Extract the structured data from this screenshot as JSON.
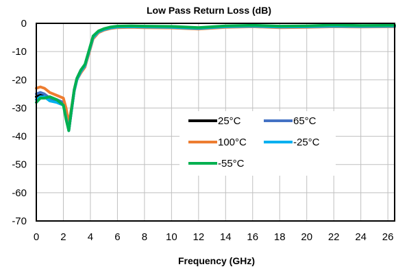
{
  "chart_data": {
    "type": "line",
    "title": "Low Pass Return Loss (dB)",
    "xlabel": "Frequency (GHz)",
    "ylabel": "",
    "xlim": [
      0,
      26.5
    ],
    "ylim": [
      -70,
      0
    ],
    "xticks": [
      0,
      2,
      4,
      6,
      8,
      10,
      12,
      14,
      16,
      18,
      20,
      22,
      24,
      26
    ],
    "yticks": [
      0,
      -10,
      -20,
      -30,
      -40,
      -50,
      -60,
      -70
    ],
    "grid": true,
    "legend_placement": "center",
    "series": [
      {
        "name": "25°C",
        "color": "#000000",
        "x": [
          0,
          0.3,
          0.6,
          1,
          1.5,
          2,
          2.2,
          2.4,
          2.6,
          2.8,
          3,
          3.3,
          3.6,
          3.9,
          4.2,
          4.6,
          5,
          5.5,
          6,
          7,
          8,
          10,
          12,
          14,
          16,
          18,
          20,
          22,
          24,
          26.5
        ],
        "y": [
          -26,
          -25,
          -25.5,
          -27,
          -27.5,
          -28.5,
          -33,
          -38,
          -31,
          -24,
          -20,
          -17,
          -15,
          -10,
          -5,
          -3,
          -2.2,
          -1.6,
          -1.3,
          -1.2,
          -1.3,
          -1.4,
          -1.8,
          -1.2,
          -1.0,
          -1.3,
          -1.2,
          -1.0,
          -1.1,
          -1.0
        ]
      },
      {
        "name": "65°C",
        "color": "#4472c4",
        "x": [
          0,
          0.3,
          0.6,
          1,
          1.5,
          2,
          2.2,
          2.4,
          2.6,
          2.8,
          3,
          3.3,
          3.6,
          3.9,
          4.2,
          4.6,
          5,
          5.5,
          6,
          7,
          8,
          10,
          12,
          14,
          16,
          18,
          20,
          22,
          24,
          26.5
        ],
        "y": [
          -25,
          -24.5,
          -25,
          -26.5,
          -27,
          -28,
          -32.5,
          -37.5,
          -30.5,
          -23.5,
          -19.5,
          -16.5,
          -14.8,
          -9.8,
          -4.9,
          -2.9,
          -2.1,
          -1.6,
          -1.3,
          -1.2,
          -1.3,
          -1.4,
          -1.8,
          -1.2,
          -1.0,
          -1.3,
          -1.2,
          -1.0,
          -1.1,
          -1.0
        ]
      },
      {
        "name": "100°C",
        "color": "#ed7d31",
        "x": [
          0,
          0.3,
          0.6,
          1,
          1.5,
          2,
          2.2,
          2.4,
          2.6,
          2.8,
          3,
          3.3,
          3.6,
          3.9,
          4.2,
          4.6,
          5,
          5.5,
          6,
          7,
          8,
          10,
          12,
          14,
          16,
          18,
          20,
          22,
          24,
          26.5
        ],
        "y": [
          -23,
          -22.5,
          -23,
          -24.5,
          -25.5,
          -26.5,
          -30,
          -35.5,
          -30,
          -24,
          -20,
          -17.5,
          -15.5,
          -10.5,
          -5.5,
          -3.3,
          -2.4,
          -1.8,
          -1.5,
          -1.4,
          -1.5,
          -1.6,
          -2.0,
          -1.4,
          -1.2,
          -1.5,
          -1.4,
          -1.2,
          -1.3,
          -1.2
        ]
      },
      {
        "name": "-25°C",
        "color": "#00b0f0",
        "x": [
          0,
          0.3,
          0.6,
          1,
          1.5,
          2,
          2.2,
          2.4,
          2.6,
          2.8,
          3,
          3.3,
          3.6,
          3.9,
          4.2,
          4.6,
          5,
          5.5,
          6,
          7,
          8,
          10,
          12,
          14,
          16,
          18,
          20,
          22,
          24,
          26.5
        ],
        "y": [
          -27,
          -26,
          -26,
          -27.5,
          -28,
          -29,
          -33.5,
          -38,
          -31,
          -24,
          -20,
          -17,
          -15,
          -10,
          -5,
          -3,
          -2.2,
          -1.6,
          -1.3,
          -1.2,
          -1.3,
          -1.4,
          -1.8,
          -1.2,
          -1.0,
          -1.3,
          -1.2,
          -1.0,
          -1.1,
          -1.0
        ]
      },
      {
        "name": "-55°C",
        "color": "#00b050",
        "x": [
          0,
          0.3,
          0.6,
          1,
          1.5,
          2,
          2.2,
          2.4,
          2.6,
          2.8,
          3,
          3.3,
          3.6,
          3.9,
          4.2,
          4.6,
          5,
          5.5,
          6,
          7,
          8,
          10,
          12,
          14,
          16,
          18,
          20,
          22,
          24,
          26.5
        ],
        "y": [
          -28,
          -26.5,
          -26.5,
          -26,
          -27,
          -29,
          -34,
          -38,
          -30.5,
          -23.5,
          -19.5,
          -16.5,
          -14.5,
          -9.5,
          -4.5,
          -2.7,
          -1.9,
          -1.3,
          -1.0,
          -0.9,
          -1.0,
          -1.1,
          -1.5,
          -0.9,
          -0.7,
          -1.0,
          -0.9,
          -0.6,
          -0.8,
          -0.7
        ]
      }
    ]
  }
}
